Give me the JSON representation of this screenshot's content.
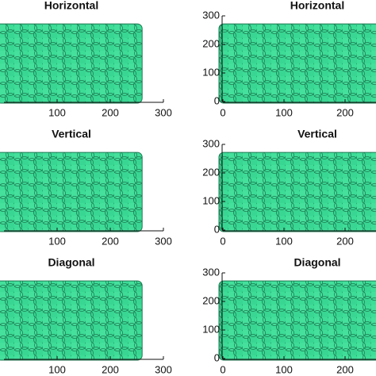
{
  "chart_data": [
    {
      "type": "packing",
      "title": "Horizontal",
      "color": "#3ddc97",
      "bed_x": [
        0,
        260
      ],
      "bed_y": [
        0,
        272
      ],
      "xlim": [
        0,
        300
      ],
      "xticks": [
        100,
        200,
        300
      ],
      "ylim": [
        0,
        300
      ]
    },
    {
      "type": "packing",
      "title": "Horizontal",
      "color": "#3ddc97",
      "bed_x": [
        0,
        260
      ],
      "bed_y": [
        0,
        272
      ],
      "xlim": [
        0,
        300
      ],
      "xticks": [
        0,
        100,
        200
      ],
      "ylim": [
        0,
        300
      ],
      "yticks": [
        0,
        100,
        200,
        300
      ]
    },
    {
      "type": "packing",
      "title": "Vertical",
      "color": "#3ddc97",
      "bed_x": [
        0,
        260
      ],
      "bed_y": [
        0,
        272
      ],
      "xlim": [
        0,
        300
      ],
      "xticks": [
        100,
        200,
        300
      ],
      "ylim": [
        0,
        300
      ]
    },
    {
      "type": "packing",
      "title": "Vertical",
      "color": "#3ddc97",
      "bed_x": [
        0,
        260
      ],
      "bed_y": [
        0,
        272
      ],
      "xlim": [
        0,
        300
      ],
      "xticks": [
        0,
        100,
        200
      ],
      "ylim": [
        0,
        300
      ],
      "yticks": [
        0,
        100,
        200,
        300
      ]
    },
    {
      "type": "packing",
      "title": "Diagonal",
      "color": "#3ddc97",
      "bed_x": [
        0,
        260
      ],
      "bed_y": [
        0,
        272
      ],
      "xlim": [
        0,
        300
      ],
      "xticks": [
        100,
        200,
        300
      ],
      "ylim": [
        0,
        300
      ]
    },
    {
      "type": "packing",
      "title": "Diagonal",
      "color": "#3ddc97",
      "bed_x": [
        0,
        260
      ],
      "bed_y": [
        0,
        272
      ],
      "xlim": [
        0,
        300
      ],
      "xticks": [
        0,
        100,
        200
      ],
      "ylim": [
        0,
        300
      ],
      "yticks": [
        0,
        100,
        200,
        300
      ]
    }
  ]
}
